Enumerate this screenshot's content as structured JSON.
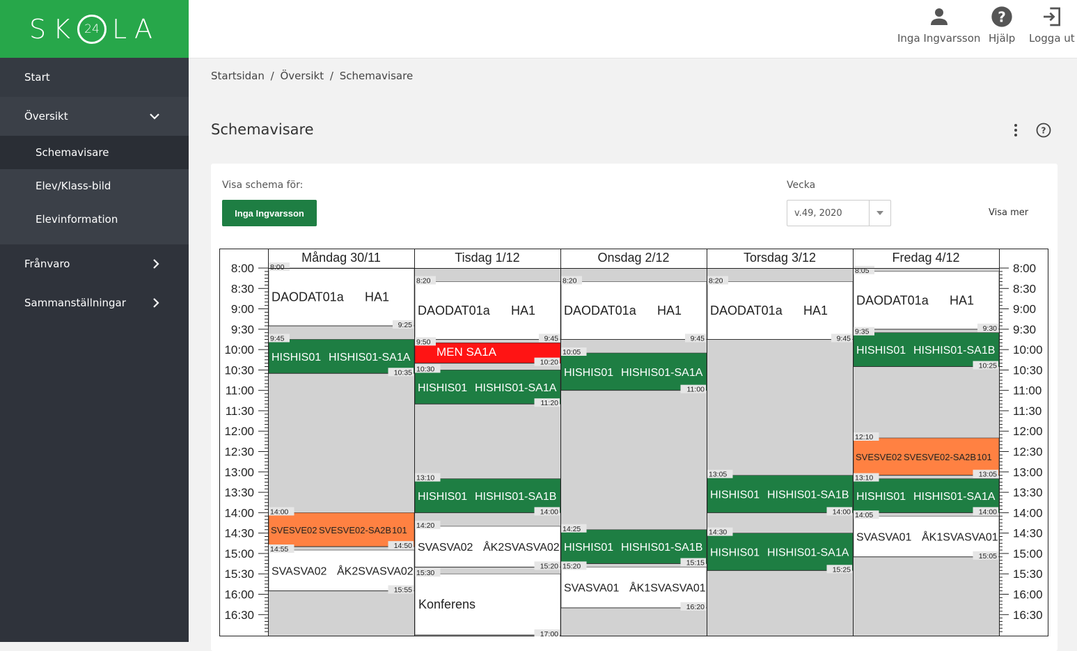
{
  "logo": {
    "left": "SK",
    "ring": "24",
    "right": "LA"
  },
  "sidebar": {
    "items": [
      {
        "label": "Start"
      },
      {
        "label": "Översikt"
      },
      {
        "label": "Schemavisare"
      },
      {
        "label": "Elev/Klass-bild"
      },
      {
        "label": "Elevinformation"
      },
      {
        "label": "Frånvaro"
      },
      {
        "label": "Sammanställningar"
      }
    ]
  },
  "topbar": {
    "user": "Inga Ingvarsson",
    "help": "Hjälp",
    "logout": "Logga ut",
    "icons": [
      "person-icon",
      "help-circle-icon",
      "logout-icon"
    ]
  },
  "breadcrumb": [
    "Startsidan",
    "Översikt",
    "Schemavisare"
  ],
  "breadcrumb_sep": "/",
  "page": {
    "title": "Schemavisare"
  },
  "controls": {
    "visa_label": "Visa schema för:",
    "person_button": "Inga Ingvarsson",
    "vecka_label": "Vecka",
    "week_value": "v.49, 2020",
    "visa_mer": "Visa mer"
  },
  "colors": {
    "green": "#1e7e43",
    "orange": "#ff8142",
    "red": "#ff1414",
    "free": "#d2d2d2",
    "lesson_white": "#ffffff",
    "brand": "#27a74a"
  },
  "schedule": {
    "days": [
      "Måndag 30/11",
      "Tisdag 1/12",
      "Onsdag 2/12",
      "Torsdag 3/12",
      "Fredag 4/12"
    ],
    "time_labels": [
      "8:00",
      "8:30",
      "9:00",
      "9:30",
      "10:00",
      "10:30",
      "11:00",
      "11:30",
      "12:00",
      "12:30",
      "13:00",
      "13:30",
      "14:00",
      "14:30",
      "15:00",
      "15:30",
      "16:00",
      "16:30"
    ],
    "day_start": "8:00",
    "day_end": "17:15",
    "lessons": [
      {
        "day": 0,
        "start": "8:00",
        "end": "9:25",
        "text": [
          "DAODAT01a",
          "HA1"
        ],
        "color": "white"
      },
      {
        "day": 0,
        "start": "9:45",
        "end": "10:35",
        "text": [
          "HISHIS01",
          "HISHIS01-SA1A"
        ],
        "color": "green"
      },
      {
        "day": 0,
        "start": "14:00",
        "end": "14:50",
        "text": [
          "SVESVE02",
          "SVESVE02-SA2B",
          "101"
        ],
        "color": "orange"
      },
      {
        "day": 0,
        "start": "14:55",
        "end": "15:55",
        "text": [
          "SVASVA02",
          "ÅK2SVASVA02"
        ],
        "color": "white"
      },
      {
        "day": 1,
        "start": "8:20",
        "end": "9:45",
        "text": [
          "DAODAT01a",
          "HA1"
        ],
        "color": "white"
      },
      {
        "day": 1,
        "start": "9:50",
        "end": "10:20",
        "text": [
          "MEN SA1A"
        ],
        "color": "red"
      },
      {
        "day": 1,
        "start": "10:30",
        "end": "11:20",
        "text": [
          "HISHIS01",
          "HISHIS01-SA1A"
        ],
        "color": "green"
      },
      {
        "day": 1,
        "start": "13:10",
        "end": "14:00",
        "text": [
          "HISHIS01",
          "HISHIS01-SA1B"
        ],
        "color": "green"
      },
      {
        "day": 1,
        "start": "14:20",
        "end": "15:20",
        "text": [
          "SVASVA02",
          "ÅK2SVASVA02"
        ],
        "color": "white"
      },
      {
        "day": 1,
        "start": "15:30",
        "end": "17:00",
        "text": [
          "Konferens"
        ],
        "color": "white"
      },
      {
        "day": 2,
        "start": "8:20",
        "end": "9:45",
        "text": [
          "DAODAT01a",
          "HA1"
        ],
        "color": "white"
      },
      {
        "day": 2,
        "start": "10:05",
        "end": "11:00",
        "text": [
          "HISHIS01",
          "HISHIS01-SA1A"
        ],
        "color": "green"
      },
      {
        "day": 2,
        "start": "14:25",
        "end": "15:15",
        "text": [
          "HISHIS01",
          "HISHIS01-SA1B"
        ],
        "color": "green"
      },
      {
        "day": 2,
        "start": "15:20",
        "end": "16:20",
        "text": [
          "SVASVA01",
          "ÅK1SVASVA01"
        ],
        "color": "white"
      },
      {
        "day": 3,
        "start": "8:20",
        "end": "9:45",
        "text": [
          "DAODAT01a",
          "HA1"
        ],
        "color": "white"
      },
      {
        "day": 3,
        "start": "13:05",
        "end": "14:00",
        "text": [
          "HISHIS01",
          "HISHIS01-SA1B"
        ],
        "color": "green"
      },
      {
        "day": 3,
        "start": "14:30",
        "end": "15:25",
        "text": [
          "HISHIS01",
          "HISHIS01-SA1A"
        ],
        "color": "green"
      },
      {
        "day": 4,
        "start": "8:05",
        "end": "9:30",
        "text": [
          "DAODAT01a",
          "HA1"
        ],
        "color": "white"
      },
      {
        "day": 4,
        "start": "9:35",
        "end": "10:25",
        "text": [
          "HISHIS01",
          "HISHIS01-SA1B"
        ],
        "color": "green"
      },
      {
        "day": 4,
        "start": "12:10",
        "end": "13:05",
        "text": [
          "SVESVE02",
          "SVESVE02-SA2B",
          "101"
        ],
        "color": "orange"
      },
      {
        "day": 4,
        "start": "13:10",
        "end": "14:00",
        "text": [
          "HISHIS01",
          "HISHIS01-SA1A"
        ],
        "color": "green"
      },
      {
        "day": 4,
        "start": "14:05",
        "end": "15:05",
        "text": [
          "SVASVA01",
          "ÅK1SVASVA01"
        ],
        "color": "white"
      }
    ]
  }
}
